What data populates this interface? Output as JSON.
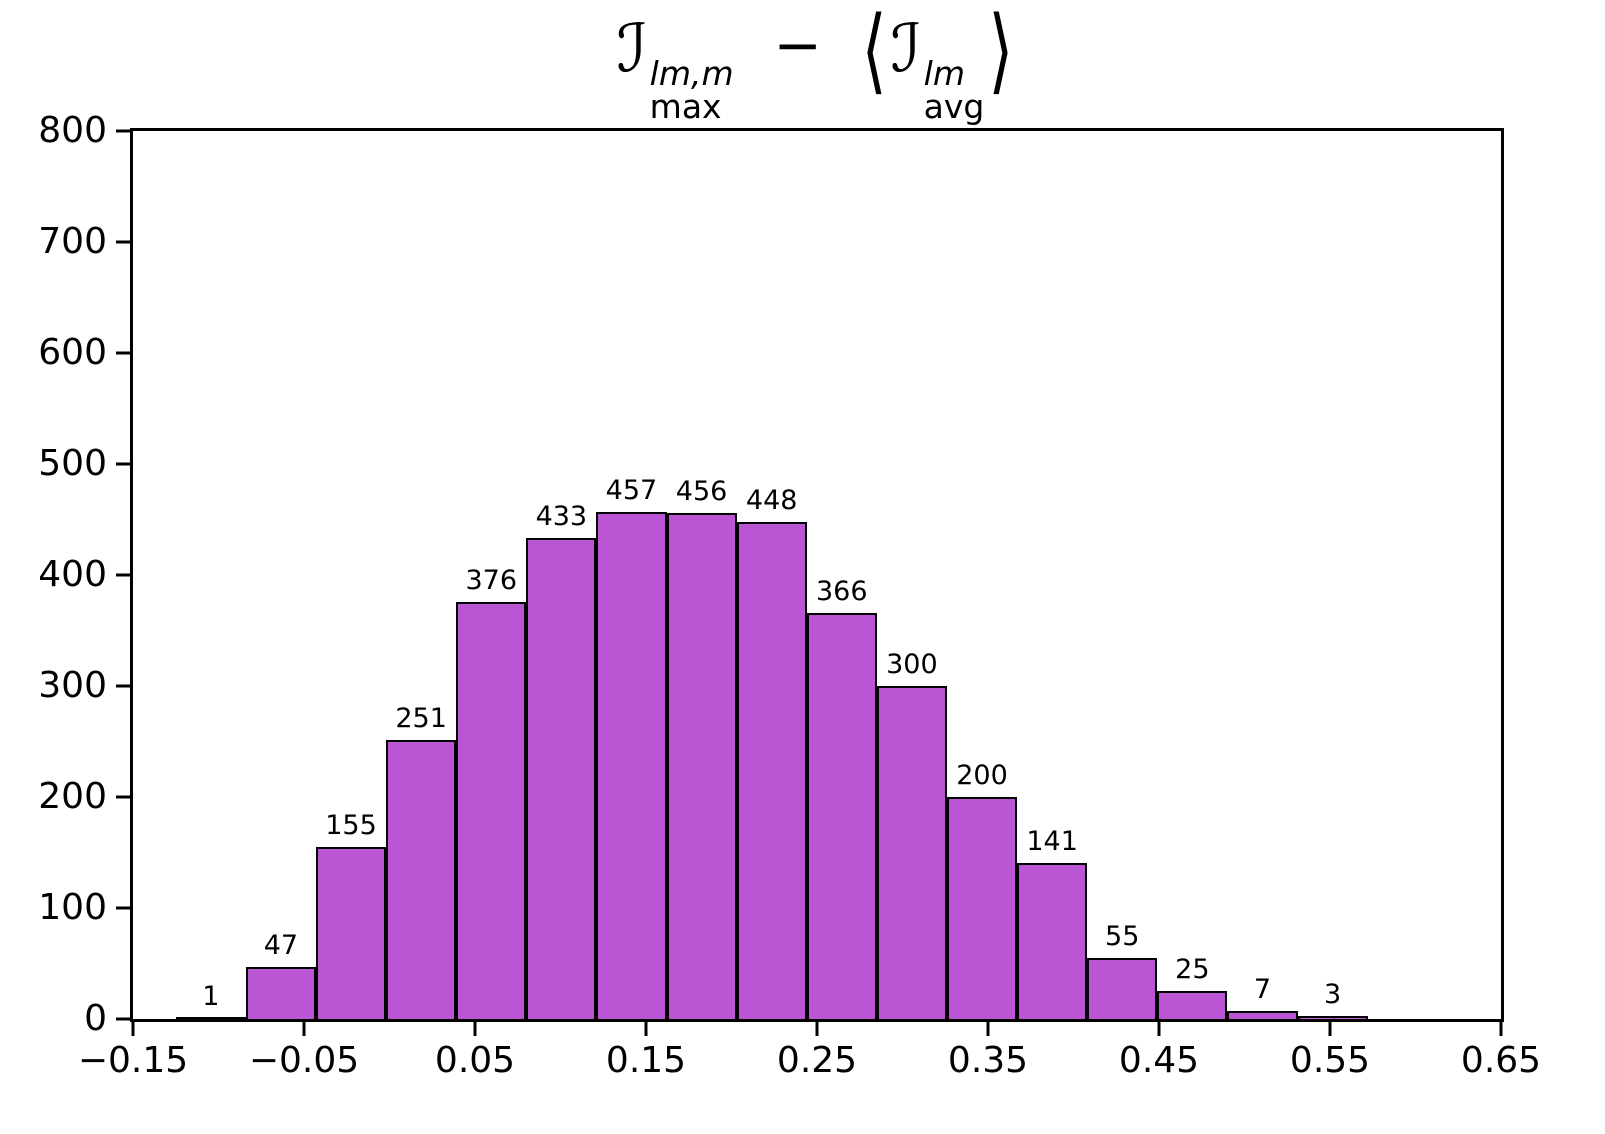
{
  "title": {
    "I1": "ℐ",
    "sup1": "lm,m",
    "sub1": "max",
    "minus": "−",
    "langle": "⟨",
    "I2": "ℐ",
    "sup2": "lm",
    "sub2": "avg",
    "rangle": "⟩"
  },
  "chart_data": {
    "type": "bar",
    "subtype": "histogram",
    "title_plain": "I_max^(lm,m) − ⟨ I_avg^(lm) ⟩",
    "bar_color": "#BA55D3",
    "bar_edge_color": "#000000",
    "xlim": [
      -0.15,
      0.65
    ],
    "ylim": [
      0,
      800
    ],
    "bin_start": -0.125,
    "bin_width": 0.041,
    "counts": [
      1,
      47,
      155,
      251,
      376,
      433,
      457,
      456,
      448,
      366,
      300,
      200,
      141,
      55,
      25,
      7,
      3
    ],
    "xtick_values": [
      -0.15,
      -0.05,
      0.05,
      0.15,
      0.25,
      0.35,
      0.45,
      0.55,
      0.65
    ],
    "xtick_labels": [
      "−0.15",
      "−0.05",
      "0.05",
      "0.15",
      "0.25",
      "0.35",
      "0.45",
      "0.55",
      "0.65"
    ],
    "ytick_values": [
      0,
      100,
      200,
      300,
      400,
      500,
      600,
      700,
      800
    ],
    "ytick_labels": [
      "0",
      "100",
      "200",
      "300",
      "400",
      "500",
      "600",
      "700",
      "800"
    ],
    "grid": false,
    "legend": false
  }
}
